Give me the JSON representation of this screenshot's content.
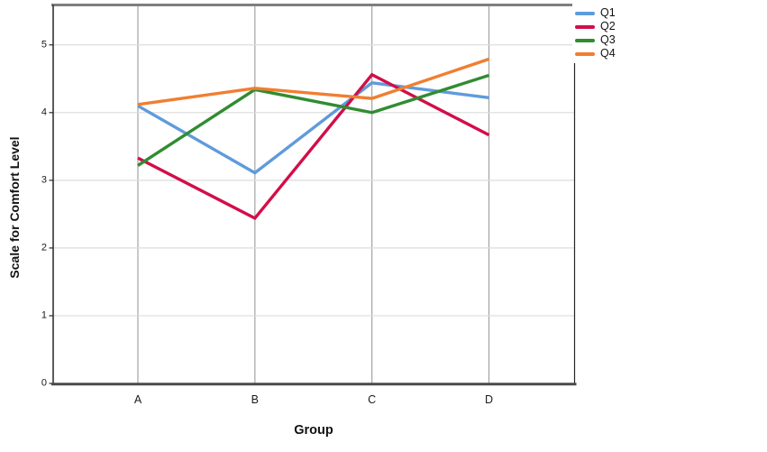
{
  "chart_data": {
    "type": "line",
    "title": "",
    "xlabel": "Group",
    "ylabel": "Scale for Comfort Level",
    "categories": [
      "A",
      "B",
      "C",
      "D"
    ],
    "series": [
      {
        "name": "Q1",
        "color": "#5F9BDC",
        "values": [
          4.1,
          3.11,
          4.44,
          4.22
        ]
      },
      {
        "name": "Q2",
        "color": "#D20E49",
        "values": [
          3.33,
          2.44,
          4.56,
          3.67
        ]
      },
      {
        "name": "Q3",
        "color": "#318C31",
        "values": [
          3.22,
          4.34,
          4.0,
          4.55
        ]
      },
      {
        "name": "Q4",
        "color": "#F07E31",
        "values": [
          4.12,
          4.36,
          4.21,
          4.79
        ]
      }
    ],
    "yticks": [
      0,
      1,
      2,
      3,
      4,
      5
    ],
    "ylim": [
      0,
      5.59
    ],
    "grid": {
      "horizontal": true,
      "vertical": true
    },
    "legend_position": "top-right-outside",
    "style": {
      "h_grid_color": "#DCDCDC",
      "v_grid_color": "#A3A3A3",
      "frame_top_color": "#7F7F7F",
      "frame_bottom_color": "#4A4A4A",
      "frame_side_color": "#262626",
      "background": "#FFFFFF"
    }
  }
}
